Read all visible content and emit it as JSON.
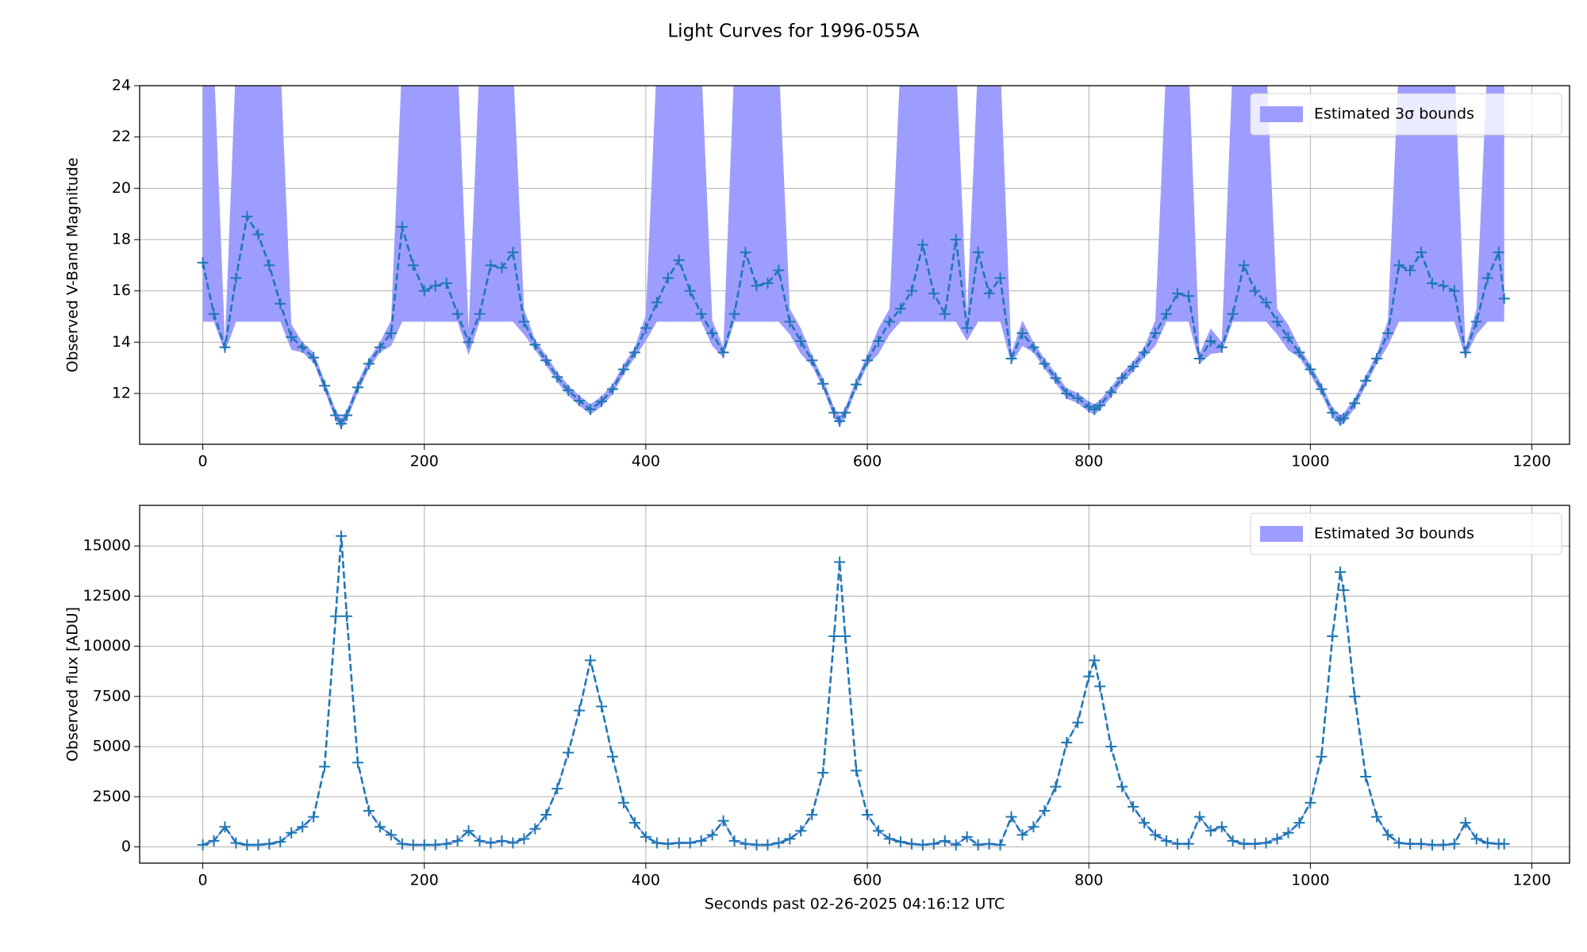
{
  "title": "Light Curves for 1996-055A",
  "chart_data": [
    {
      "type": "line",
      "ylabel": "Observed V-Band Magnitude",
      "xlim": [
        -57,
        1234
      ],
      "ylim": [
        10.02,
        24
      ],
      "xticks": [
        0,
        200,
        400,
        600,
        800,
        1000,
        1200
      ],
      "yticks": [
        12,
        14,
        16,
        18,
        20,
        22,
        24
      ],
      "grid": true,
      "legend": "upper right",
      "x": [
        0,
        10,
        20,
        30,
        40,
        50,
        60,
        70,
        80,
        90,
        100,
        110,
        120,
        125,
        130,
        140,
        150,
        160,
        170,
        180,
        190,
        200,
        210,
        220,
        230,
        240,
        250,
        260,
        270,
        280,
        290,
        300,
        310,
        320,
        330,
        340,
        350,
        360,
        370,
        380,
        390,
        400,
        410,
        420,
        430,
        440,
        450,
        460,
        470,
        480,
        490,
        500,
        510,
        520,
        530,
        540,
        550,
        560,
        570,
        575,
        580,
        590,
        600,
        610,
        620,
        630,
        640,
        650,
        660,
        670,
        680,
        690,
        700,
        710,
        720,
        730,
        740,
        750,
        760,
        770,
        780,
        790,
        800,
        805,
        810,
        820,
        830,
        840,
        850,
        860,
        870,
        880,
        890,
        900,
        910,
        920,
        930,
        940,
        950,
        960,
        970,
        980,
        990,
        1000,
        1010,
        1020,
        1027,
        1030,
        1040,
        1050,
        1060,
        1070,
        1080,
        1090,
        1100,
        1110,
        1120,
        1130,
        1140,
        1150,
        1160,
        1170,
        1175
      ],
      "series": [
        {
          "color": "#1f77b4",
          "linestyle": "dashed",
          "marker": "+",
          "values": [
            17.1,
            15.1,
            13.8,
            16.5,
            18.9,
            18.2,
            17.0,
            15.5,
            14.2,
            13.8,
            13.4,
            12.3,
            11.15,
            10.82,
            11.15,
            12.24,
            13.16,
            13.8,
            14.35,
            18.5,
            17.0,
            16.0,
            16.2,
            16.3,
            15.1,
            14.0,
            15.1,
            17.0,
            16.9,
            17.5,
            14.8,
            13.9,
            13.29,
            12.64,
            12.12,
            11.72,
            11.38,
            11.69,
            12.17,
            12.94,
            13.6,
            14.55,
            15.55,
            16.5,
            17.2,
            16.0,
            15.1,
            14.35,
            13.6,
            15.1,
            17.5,
            16.2,
            16.3,
            16.8,
            14.8,
            14.04,
            13.29,
            12.38,
            11.25,
            10.92,
            11.25,
            12.35,
            13.29,
            14.04,
            14.8,
            15.3,
            16.0,
            17.8,
            15.9,
            15.1,
            18.0,
            14.55,
            17.5,
            15.9,
            16.5,
            13.36,
            14.35,
            13.8,
            13.16,
            12.6,
            12.0,
            11.82,
            11.48,
            11.38,
            11.54,
            12.05,
            12.6,
            13.05,
            13.6,
            14.35,
            15.1,
            15.9,
            15.8,
            13.36,
            14.04,
            13.8,
            15.1,
            17.0,
            16.0,
            15.55,
            14.8,
            14.18,
            13.6,
            12.94,
            12.17,
            11.25,
            10.96,
            11.03,
            11.62,
            12.5,
            13.36,
            14.35,
            17.0,
            16.8,
            17.5,
            16.3,
            16.2,
            16.0,
            13.6,
            14.8,
            16.5,
            17.5,
            15.7
          ]
        }
      ],
      "band": {
        "name": "Estimated 3σ bounds",
        "color": "#9d9dff",
        "lower": [
          14.8,
          14.8,
          13.6,
          14.8,
          14.8,
          14.8,
          14.8,
          14.8,
          13.7,
          13.6,
          13.2,
          12.1,
          10.95,
          10.62,
          10.95,
          12.04,
          12.96,
          13.6,
          13.85,
          14.8,
          14.8,
          14.8,
          14.8,
          14.8,
          14.8,
          13.5,
          14.8,
          14.8,
          14.8,
          14.8,
          14.3,
          13.7,
          13.09,
          12.44,
          11.92,
          11.52,
          11.18,
          11.49,
          11.97,
          12.74,
          13.4,
          14.05,
          14.8,
          14.8,
          14.8,
          14.8,
          14.8,
          13.85,
          13.4,
          14.8,
          14.8,
          14.8,
          14.8,
          14.8,
          14.3,
          13.54,
          13.09,
          12.18,
          11.05,
          10.72,
          11.05,
          12.15,
          13.09,
          13.54,
          14.3,
          14.8,
          14.8,
          14.8,
          14.8,
          14.8,
          14.8,
          14.05,
          14.8,
          14.8,
          14.8,
          13.16,
          13.85,
          13.6,
          12.96,
          12.4,
          11.8,
          11.62,
          11.28,
          11.18,
          11.34,
          11.85,
          12.4,
          12.85,
          13.4,
          13.85,
          14.8,
          14.8,
          14.8,
          13.16,
          13.54,
          13.6,
          14.8,
          14.8,
          14.8,
          14.8,
          14.3,
          13.68,
          13.4,
          12.74,
          11.97,
          11.05,
          10.76,
          10.83,
          11.42,
          12.3,
          13.16,
          13.85,
          14.8,
          14.8,
          14.8,
          14.8,
          14.8,
          14.8,
          13.4,
          14.3,
          14.8,
          14.8,
          14.8
        ],
        "upper": [
          25,
          25,
          14.0,
          25,
          25,
          25,
          25,
          25,
          14.7,
          14.0,
          13.6,
          12.5,
          11.35,
          11.02,
          11.35,
          12.44,
          13.36,
          14.0,
          14.85,
          25,
          25,
          25,
          25,
          25,
          25,
          14.5,
          25,
          25,
          25,
          25,
          15.3,
          14.1,
          13.49,
          12.84,
          12.32,
          11.92,
          11.58,
          11.89,
          12.37,
          13.14,
          13.8,
          15.05,
          25,
          25,
          25,
          25,
          25,
          14.85,
          13.8,
          25,
          25,
          25,
          25,
          25,
          15.3,
          14.54,
          13.49,
          12.58,
          11.45,
          11.12,
          11.45,
          12.55,
          13.49,
          14.54,
          15.3,
          25,
          25,
          25,
          25,
          25,
          25,
          15.05,
          25,
          25,
          25,
          13.56,
          14.85,
          14.0,
          13.36,
          12.8,
          12.2,
          12.02,
          11.68,
          11.58,
          11.74,
          12.25,
          12.8,
          13.25,
          13.8,
          14.85,
          25,
          25,
          25,
          13.56,
          14.54,
          14.0,
          25,
          25,
          25,
          25,
          15.3,
          14.68,
          13.8,
          13.14,
          12.37,
          11.45,
          11.16,
          11.23,
          11.82,
          12.7,
          13.56,
          14.85,
          25,
          25,
          25,
          25,
          25,
          25,
          13.8,
          15.3,
          25,
          25,
          25
        ]
      }
    },
    {
      "type": "line",
      "ylabel": "Observed flux [ADU]",
      "xlabel": "Seconds past 02-26-2025 04:16:12 UTC",
      "xlim": [
        -57,
        1234
      ],
      "ylim": [
        -811,
        17027
      ],
      "xticks": [
        0,
        200,
        400,
        600,
        800,
        1000,
        1200
      ],
      "yticks": [
        0,
        2500,
        5000,
        7500,
        10000,
        12500,
        15000
      ],
      "grid": true,
      "legend": "upper right",
      "x": [
        0,
        10,
        20,
        30,
        40,
        50,
        60,
        70,
        80,
        90,
        100,
        110,
        120,
        125,
        130,
        140,
        150,
        160,
        170,
        180,
        190,
        200,
        210,
        220,
        230,
        240,
        250,
        260,
        270,
        280,
        290,
        300,
        310,
        320,
        330,
        340,
        350,
        360,
        370,
        380,
        390,
        400,
        410,
        420,
        430,
        440,
        450,
        460,
        470,
        480,
        490,
        500,
        510,
        520,
        530,
        540,
        550,
        560,
        570,
        575,
        580,
        590,
        600,
        610,
        620,
        630,
        640,
        650,
        660,
        670,
        680,
        690,
        700,
        710,
        720,
        730,
        740,
        750,
        760,
        770,
        780,
        790,
        800,
        805,
        810,
        820,
        830,
        840,
        850,
        860,
        870,
        880,
        890,
        900,
        910,
        920,
        930,
        940,
        950,
        960,
        970,
        980,
        990,
        1000,
        1010,
        1020,
        1027,
        1030,
        1040,
        1050,
        1060,
        1070,
        1080,
        1090,
        1100,
        1110,
        1120,
        1130,
        1140,
        1150,
        1160,
        1170,
        1175
      ],
      "series": [
        {
          "color": "#1f77b4",
          "linestyle": "dashed",
          "marker": "+",
          "values": [
            100,
            300,
            1000,
            200,
            100,
            100,
            150,
            250,
            700,
            1000,
            1500,
            4000,
            11500,
            15500,
            11500,
            4200,
            1800,
            1000,
            600,
            150,
            100,
            100,
            100,
            150,
            300,
            800,
            300,
            200,
            300,
            200,
            400,
            900,
            1600,
            2900,
            4700,
            6800,
            9300,
            7000,
            4500,
            2200,
            1200,
            500,
            200,
            150,
            200,
            200,
            300,
            600,
            1300,
            300,
            150,
            100,
            100,
            200,
            400,
            800,
            1600,
            3700,
            10500,
            14200,
            10500,
            3800,
            1600,
            800,
            400,
            250,
            150,
            100,
            150,
            300,
            100,
            500,
            100,
            150,
            100,
            1500,
            600,
            1000,
            1800,
            3000,
            5200,
            6200,
            8500,
            9300,
            8000,
            5000,
            3000,
            2000,
            1200,
            600,
            300,
            150,
            150,
            1500,
            800,
            1000,
            300,
            150,
            150,
            200,
            400,
            700,
            1200,
            2200,
            4500,
            10500,
            13700,
            12800,
            7500,
            3500,
            1500,
            600,
            200,
            150,
            150,
            100,
            100,
            150,
            1200,
            400,
            200,
            150,
            150
          ]
        }
      ],
      "band": {
        "name": "Estimated 3σ bounds",
        "color": "#9d9dff",
        "lower": [
          40,
          240,
          940,
          140,
          40,
          40,
          90,
          190,
          640,
          940,
          1440,
          3940,
          11440,
          15440,
          11440,
          4140,
          1740,
          940,
          540,
          90,
          40,
          40,
          40,
          90,
          240,
          740,
          240,
          140,
          240,
          140,
          340,
          840,
          1540,
          2840,
          4640,
          6740,
          9240,
          6940,
          4440,
          2140,
          1140,
          440,
          140,
          90,
          140,
          140,
          240,
          540,
          1240,
          240,
          90,
          40,
          40,
          140,
          340,
          740,
          1540,
          3640,
          10440,
          14140,
          10440,
          3740,
          1540,
          740,
          340,
          190,
          90,
          40,
          90,
          240,
          40,
          440,
          40,
          90,
          40,
          1440,
          540,
          940,
          1740,
          2940,
          5140,
          6140,
          8440,
          9240,
          7940,
          4940,
          2940,
          1940,
          1140,
          540,
          240,
          90,
          90,
          1440,
          740,
          940,
          240,
          90,
          90,
          140,
          340,
          640,
          1140,
          2140,
          4440,
          10440,
          13640,
          12740,
          7440,
          3440,
          1440,
          540,
          140,
          90,
          90,
          40,
          40,
          90,
          1140,
          340,
          140,
          90,
          90
        ],
        "upper": [
          160,
          360,
          1060,
          260,
          160,
          160,
          210,
          310,
          760,
          1060,
          1560,
          4060,
          11560,
          15560,
          11560,
          4260,
          1860,
          1060,
          660,
          210,
          160,
          160,
          160,
          210,
          360,
          860,
          360,
          260,
          360,
          260,
          460,
          960,
          1660,
          2960,
          4760,
          6860,
          9360,
          7060,
          4560,
          2260,
          1260,
          560,
          260,
          210,
          260,
          260,
          360,
          660,
          1360,
          360,
          210,
          160,
          160,
          260,
          460,
          860,
          1660,
          3760,
          10560,
          14260,
          10560,
          3860,
          1660,
          860,
          460,
          310,
          210,
          160,
          210,
          360,
          160,
          560,
          160,
          210,
          160,
          1560,
          660,
          1060,
          1860,
          3060,
          5260,
          6260,
          8560,
          9360,
          8060,
          5060,
          3060,
          2060,
          1260,
          660,
          360,
          210,
          210,
          1560,
          860,
          1060,
          360,
          210,
          210,
          260,
          460,
          760,
          1260,
          2260,
          4560,
          10560,
          13760,
          12860,
          7560,
          3560,
          1560,
          660,
          260,
          210,
          210,
          160,
          160,
          210,
          1260,
          460,
          260,
          210,
          210
        ]
      }
    }
  ]
}
